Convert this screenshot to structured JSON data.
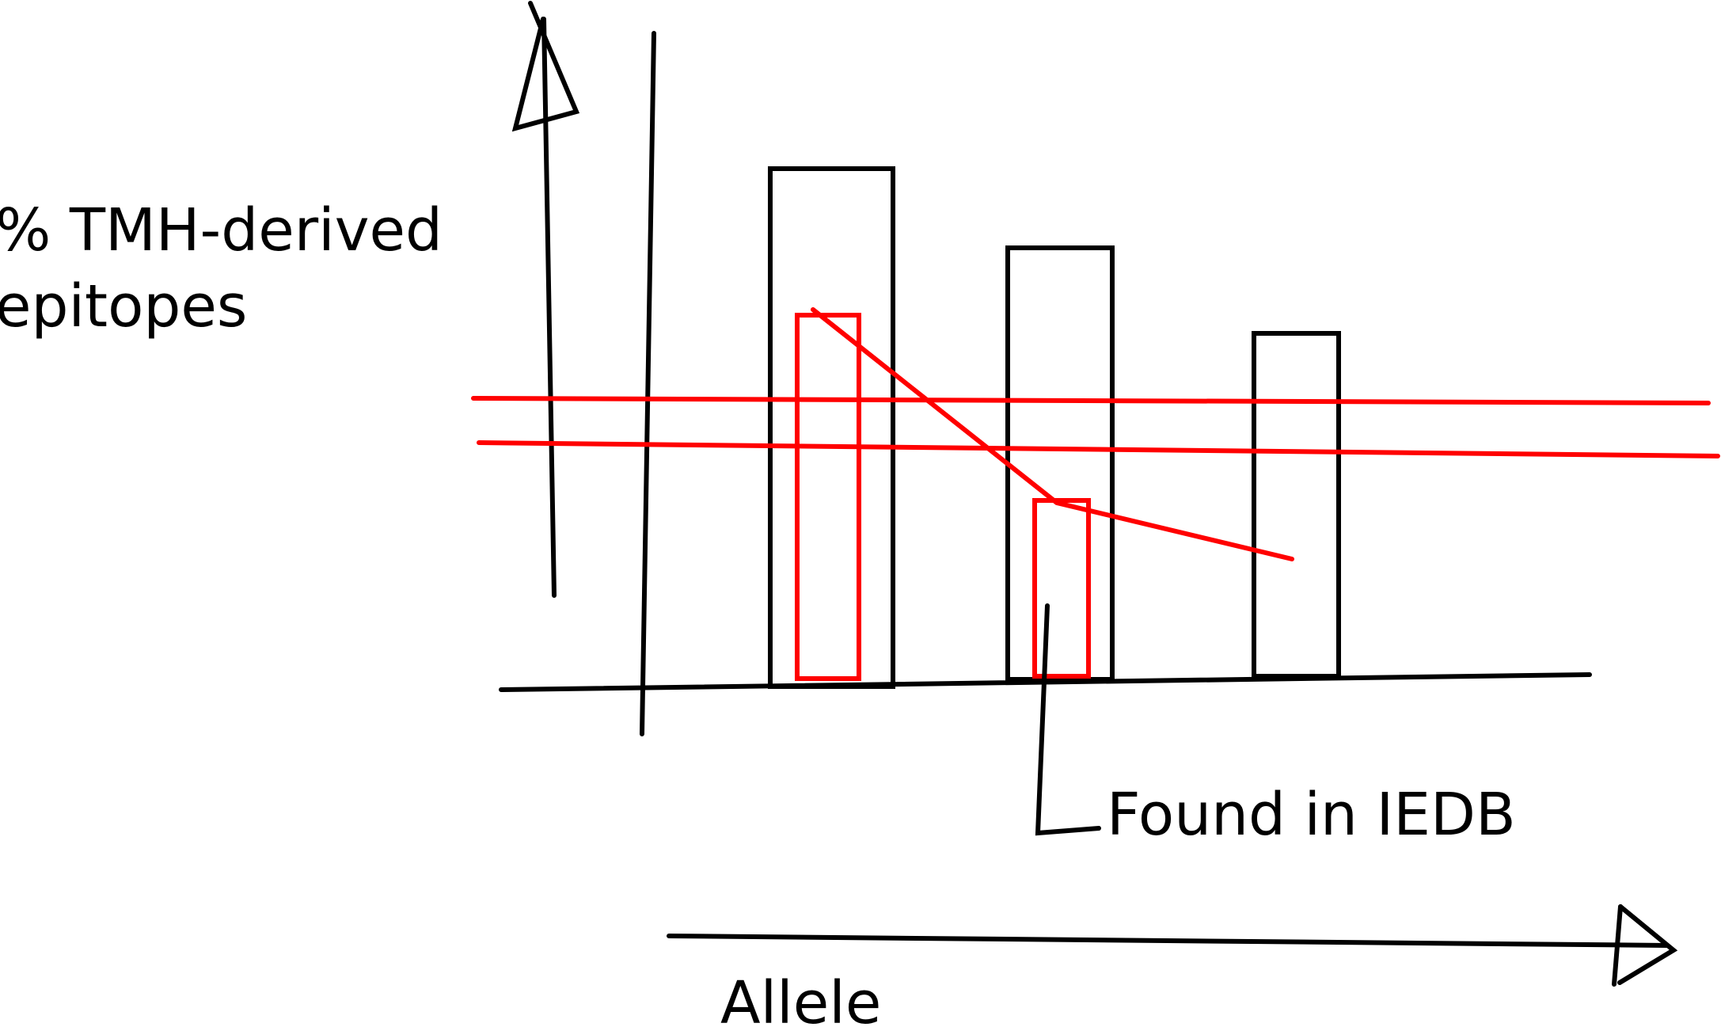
{
  "diagram": {
    "ylabel_lines": [
      "% TMH-derived",
      "epitopes"
    ],
    "xlabel": "Allele",
    "annotation": "Found in IEDB"
  },
  "colors": {
    "black_ink": "#000000",
    "red_ink": "#ff0000",
    "background": "#ffffff"
  }
}
